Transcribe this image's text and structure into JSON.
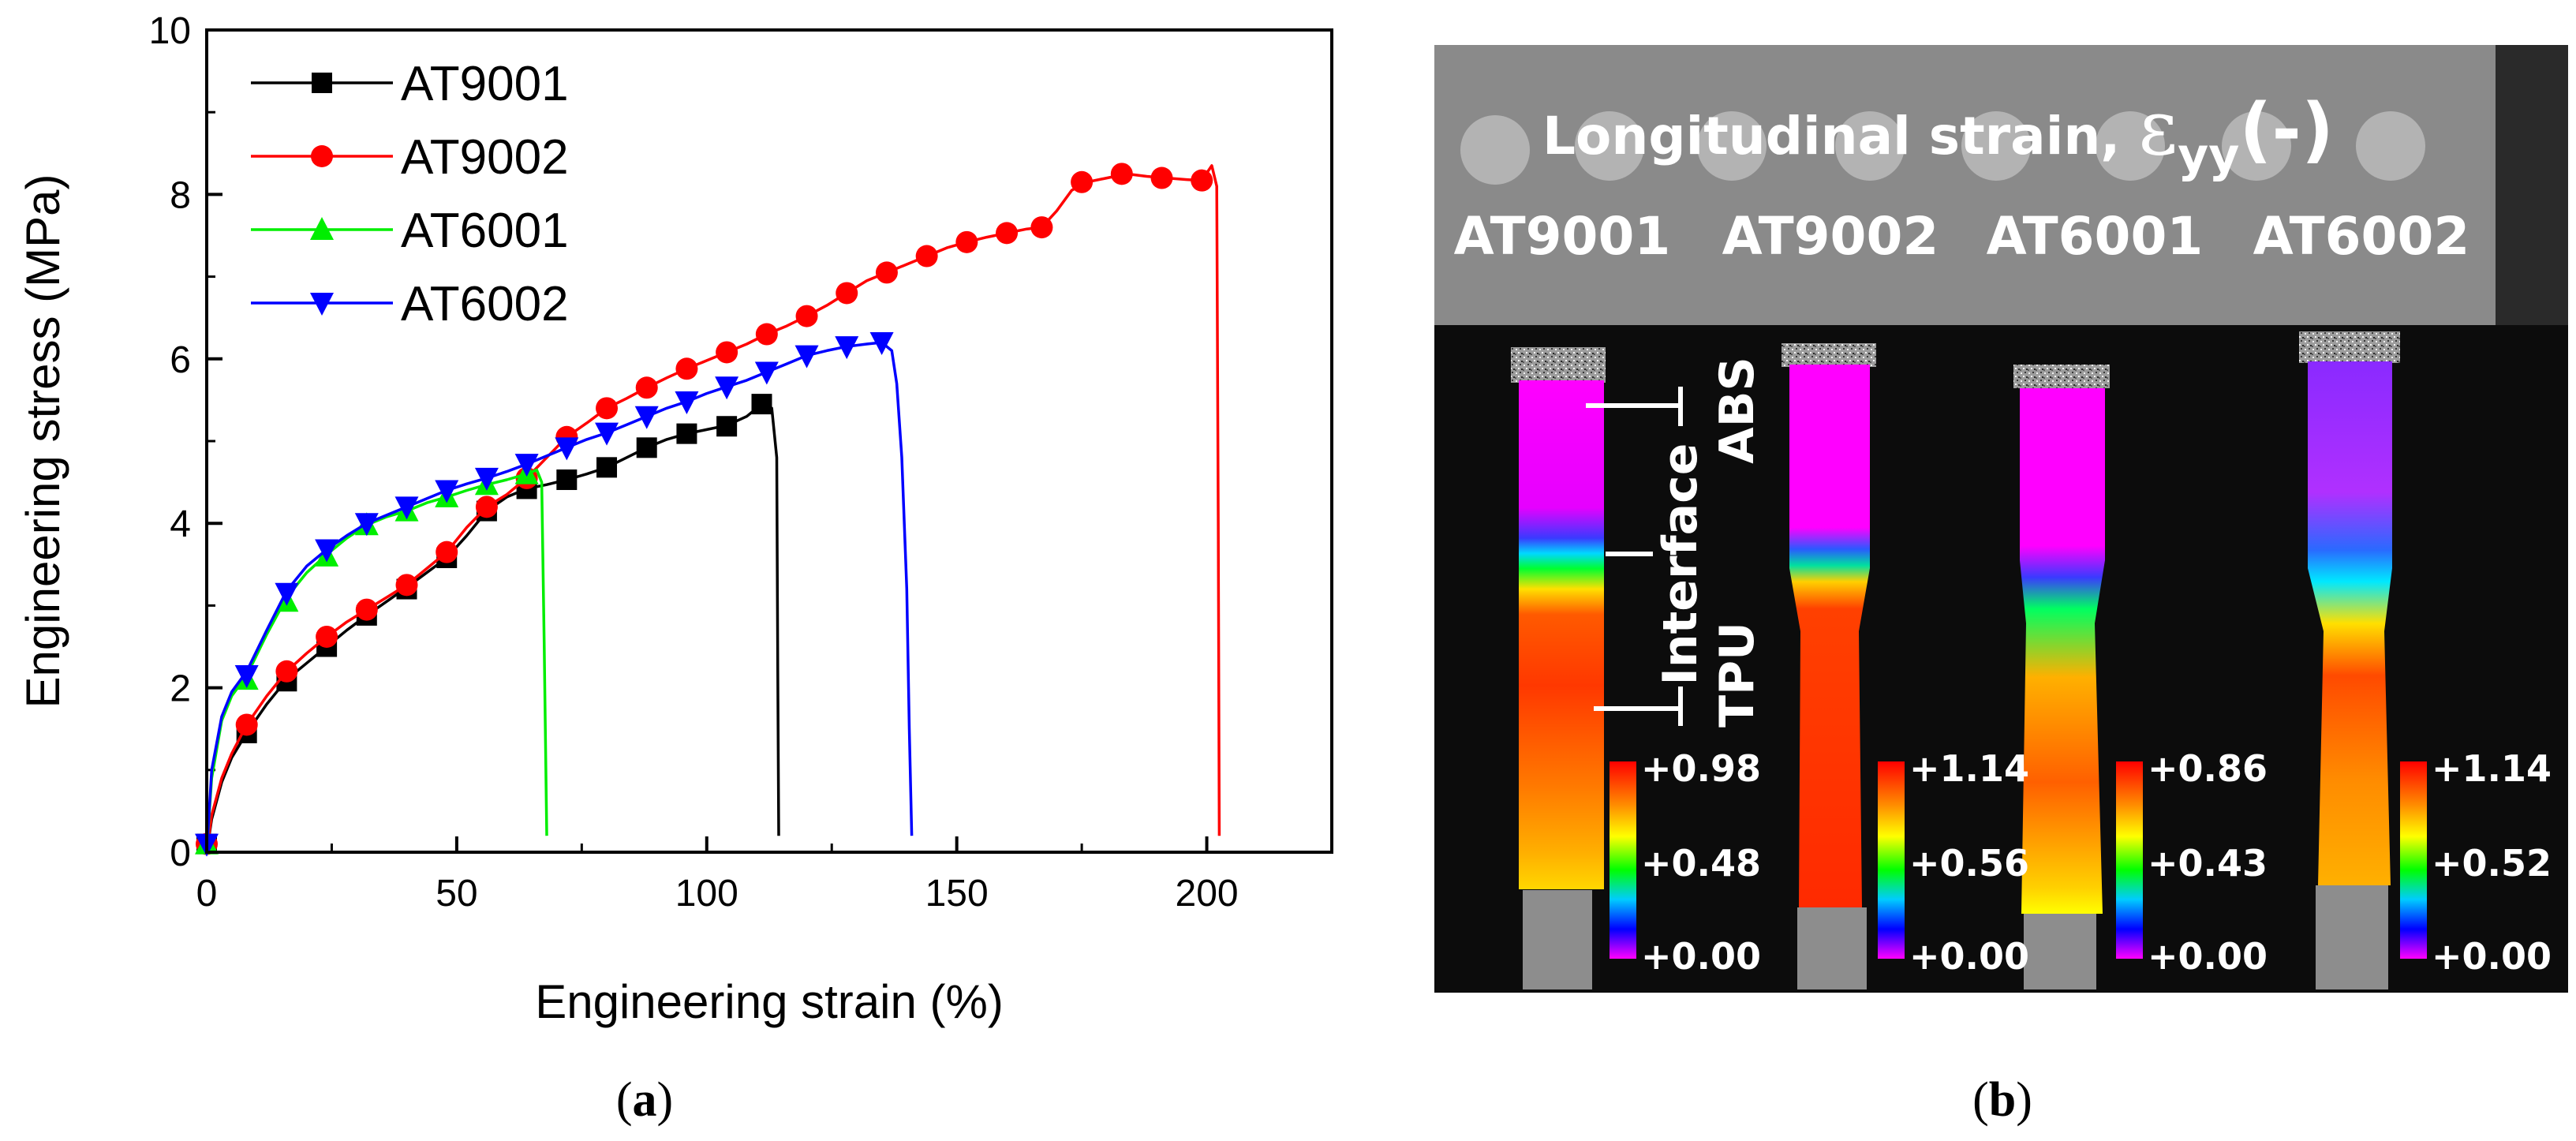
{
  "chart_data": [
    {
      "type": "line",
      "panel": "(a)",
      "xlabel": "Engineering strain (%)",
      "ylabel": "Engineering stress (MPa)",
      "xlim": [
        0,
        225
      ],
      "ylim": [
        0,
        10
      ],
      "xticks": [
        0,
        50,
        100,
        150,
        200
      ],
      "yticks": [
        0,
        2,
        4,
        6,
        8,
        10
      ],
      "legend_position": "top-left",
      "series": [
        {
          "name": "AT9001",
          "color": "#000000",
          "marker": "square",
          "line": [
            [
              0,
              0
            ],
            [
              1,
              0.4
            ],
            [
              3,
              0.85
            ],
            [
              5,
              1.15
            ],
            [
              8,
              1.45
            ],
            [
              12,
              1.8
            ],
            [
              16,
              2.1
            ],
            [
              20,
              2.3
            ],
            [
              24,
              2.5
            ],
            [
              28,
              2.7
            ],
            [
              32,
              2.88
            ],
            [
              36,
              3.05
            ],
            [
              40,
              3.22
            ],
            [
              44,
              3.4
            ],
            [
              48,
              3.58
            ],
            [
              52,
              3.85
            ],
            [
              56,
              4.15
            ],
            [
              60,
              4.32
            ],
            [
              64,
              4.42
            ],
            [
              68,
              4.47
            ],
            [
              72,
              4.53
            ],
            [
              76,
              4.6
            ],
            [
              80,
              4.68
            ],
            [
              84,
              4.8
            ],
            [
              88,
              4.92
            ],
            [
              92,
              5.02
            ],
            [
              96,
              5.09
            ],
            [
              100,
              5.14
            ],
            [
              104,
              5.19
            ],
            [
              108,
              5.3
            ],
            [
              111,
              5.45
            ],
            [
              113,
              5.4
            ],
            [
              114,
              4.8
            ],
            [
              114.2,
              2.2
            ],
            [
              114.4,
              0.2
            ]
          ],
          "markers": [
            [
              0,
              0.1
            ],
            [
              8,
              1.45
            ],
            [
              16,
              2.08
            ],
            [
              24,
              2.5
            ],
            [
              32,
              2.88
            ],
            [
              40,
              3.2
            ],
            [
              48,
              3.58
            ],
            [
              56,
              4.15
            ],
            [
              64,
              4.42
            ],
            [
              72,
              4.53
            ],
            [
              80,
              4.68
            ],
            [
              88,
              4.92
            ],
            [
              96,
              5.09
            ],
            [
              104,
              5.18
            ],
            [
              111,
              5.45
            ]
          ]
        },
        {
          "name": "AT9002",
          "color": "#ff0000",
          "marker": "circle",
          "line": [
            [
              0,
              0
            ],
            [
              1,
              0.45
            ],
            [
              3,
              0.9
            ],
            [
              5,
              1.2
            ],
            [
              8,
              1.55
            ],
            [
              12,
              1.9
            ],
            [
              16,
              2.2
            ],
            [
              20,
              2.42
            ],
            [
              24,
              2.62
            ],
            [
              28,
              2.8
            ],
            [
              32,
              2.95
            ],
            [
              36,
              3.1
            ],
            [
              40,
              3.25
            ],
            [
              44,
              3.45
            ],
            [
              48,
              3.65
            ],
            [
              52,
              3.95
            ],
            [
              56,
              4.2
            ],
            [
              60,
              4.35
            ],
            [
              64,
              4.55
            ],
            [
              68,
              4.8
            ],
            [
              72,
              5.05
            ],
            [
              76,
              5.22
            ],
            [
              80,
              5.4
            ],
            [
              84,
              5.52
            ],
            [
              88,
              5.65
            ],
            [
              92,
              5.77
            ],
            [
              96,
              5.88
            ],
            [
              100,
              5.98
            ],
            [
              104,
              6.08
            ],
            [
              108,
              6.18
            ],
            [
              112,
              6.3
            ],
            [
              116,
              6.4
            ],
            [
              120,
              6.52
            ],
            [
              124,
              6.65
            ],
            [
              128,
              6.8
            ],
            [
              132,
              6.95
            ],
            [
              136,
              7.05
            ],
            [
              140,
              7.15
            ],
            [
              144,
              7.25
            ],
            [
              148,
              7.35
            ],
            [
              152,
              7.42
            ],
            [
              156,
              7.48
            ],
            [
              160,
              7.53
            ],
            [
              164,
              7.58
            ],
            [
              167,
              7.6
            ],
            [
              170,
              7.8
            ],
            [
              173,
              8.05
            ],
            [
              176,
              8.15
            ],
            [
              180,
              8.2
            ],
            [
              184,
              8.25
            ],
            [
              188,
              8.22
            ],
            [
              192,
              8.2
            ],
            [
              196,
              8.18
            ],
            [
              199,
              8.17
            ],
            [
              201,
              8.35
            ],
            [
              202,
              8.1
            ],
            [
              202.3,
              4.0
            ],
            [
              202.5,
              0.2
            ]
          ],
          "markers": [
            [
              0,
              0.1
            ],
            [
              8,
              1.55
            ],
            [
              16,
              2.2
            ],
            [
              24,
              2.62
            ],
            [
              32,
              2.95
            ],
            [
              40,
              3.25
            ],
            [
              48,
              3.65
            ],
            [
              56,
              4.2
            ],
            [
              64,
              4.55
            ],
            [
              72,
              5.05
            ],
            [
              80,
              5.4
            ],
            [
              88,
              5.65
            ],
            [
              96,
              5.88
            ],
            [
              104,
              6.08
            ],
            [
              112,
              6.3
            ],
            [
              120,
              6.52
            ],
            [
              128,
              6.8
            ],
            [
              136,
              7.05
            ],
            [
              144,
              7.25
            ],
            [
              152,
              7.42
            ],
            [
              160,
              7.53
            ],
            [
              167,
              7.6
            ],
            [
              175,
              8.15
            ],
            [
              183,
              8.25
            ],
            [
              191,
              8.2
            ],
            [
              199,
              8.17
            ]
          ]
        },
        {
          "name": "AT6001",
          "color": "#00ee00",
          "marker": "triangle-up",
          "line": [
            [
              0,
              0
            ],
            [
              1,
              0.9
            ],
            [
              3,
              1.6
            ],
            [
              5,
              1.9
            ],
            [
              8,
              2.15
            ],
            [
              12,
              2.65
            ],
            [
              16,
              3.1
            ],
            [
              20,
              3.4
            ],
            [
              24,
              3.62
            ],
            [
              28,
              3.82
            ],
            [
              32,
              3.98
            ],
            [
              36,
              4.08
            ],
            [
              40,
              4.15
            ],
            [
              44,
              4.25
            ],
            [
              48,
              4.32
            ],
            [
              52,
              4.4
            ],
            [
              56,
              4.47
            ],
            [
              60,
              4.53
            ],
            [
              64,
              4.6
            ],
            [
              66,
              4.65
            ],
            [
              67,
              4.5
            ],
            [
              67.5,
              2.5
            ],
            [
              68,
              0.2
            ]
          ],
          "markers": [
            [
              0,
              0.1
            ],
            [
              8,
              2.1
            ],
            [
              16,
              3.05
            ],
            [
              24,
              3.6
            ],
            [
              32,
              3.98
            ],
            [
              40,
              4.15
            ],
            [
              48,
              4.32
            ],
            [
              56,
              4.47
            ],
            [
              64,
              4.6
            ]
          ]
        },
        {
          "name": "AT6002",
          "color": "#0000ff",
          "marker": "triangle-down",
          "line": [
            [
              0,
              0
            ],
            [
              1,
              1.0
            ],
            [
              3,
              1.65
            ],
            [
              5,
              1.95
            ],
            [
              8,
              2.2
            ],
            [
              12,
              2.7
            ],
            [
              16,
              3.18
            ],
            [
              20,
              3.48
            ],
            [
              24,
              3.68
            ],
            [
              28,
              3.85
            ],
            [
              32,
              4.0
            ],
            [
              36,
              4.1
            ],
            [
              40,
              4.2
            ],
            [
              44,
              4.3
            ],
            [
              48,
              4.4
            ],
            [
              52,
              4.48
            ],
            [
              56,
              4.55
            ],
            [
              60,
              4.63
            ],
            [
              64,
              4.72
            ],
            [
              68,
              4.82
            ],
            [
              72,
              4.92
            ],
            [
              76,
              5.02
            ],
            [
              80,
              5.1
            ],
            [
              84,
              5.2
            ],
            [
              88,
              5.3
            ],
            [
              92,
              5.4
            ],
            [
              96,
              5.48
            ],
            [
              100,
              5.58
            ],
            [
              104,
              5.66
            ],
            [
              108,
              5.74
            ],
            [
              112,
              5.84
            ],
            [
              116,
              5.94
            ],
            [
              120,
              6.04
            ],
            [
              124,
              6.1
            ],
            [
              128,
              6.15
            ],
            [
              132,
              6.18
            ],
            [
              135,
              6.2
            ],
            [
              137,
              6.1
            ],
            [
              138,
              5.7
            ],
            [
              139,
              4.8
            ],
            [
              140,
              3.2
            ],
            [
              140.5,
              1.5
            ],
            [
              141,
              0.2
            ]
          ],
          "markers": [
            [
              0,
              0.1
            ],
            [
              8,
              2.15
            ],
            [
              16,
              3.15
            ],
            [
              24,
              3.68
            ],
            [
              32,
              4.0
            ],
            [
              40,
              4.2
            ],
            [
              48,
              4.4
            ],
            [
              56,
              4.55
            ],
            [
              64,
              4.72
            ],
            [
              72,
              4.92
            ],
            [
              80,
              5.1
            ],
            [
              88,
              5.3
            ],
            [
              96,
              5.48
            ],
            [
              104,
              5.66
            ],
            [
              112,
              5.84
            ],
            [
              120,
              6.04
            ],
            [
              128,
              6.15
            ],
            [
              135,
              6.2
            ]
          ]
        }
      ]
    },
    {
      "type": "image",
      "panel": "(b)",
      "title": "Longitudinal strain, ",
      "title_symbol": "ε",
      "title_subscript": "yy",
      "title_suffix": "(-)",
      "region_labels": [
        "ABS",
        "Interface",
        "TPU"
      ],
      "specimens": [
        {
          "name": "AT9001",
          "scale_max": "+0.98",
          "scale_mid": "+0.48",
          "scale_min": "+0.00"
        },
        {
          "name": "AT9002",
          "scale_max": "+1.14",
          "scale_mid": "+0.56",
          "scale_min": "+0.00"
        },
        {
          "name": "AT6001",
          "scale_max": "+0.86",
          "scale_mid": "+0.43",
          "scale_min": "+0.00"
        },
        {
          "name": "AT6002",
          "scale_max": "+1.14",
          "scale_mid": "+0.52",
          "scale_min": "+0.00"
        }
      ]
    }
  ],
  "captions": {
    "a_open": "(",
    "a_letter": "a",
    "a_close": ")",
    "b_open": "(",
    "b_letter": "b",
    "b_close": ")"
  }
}
